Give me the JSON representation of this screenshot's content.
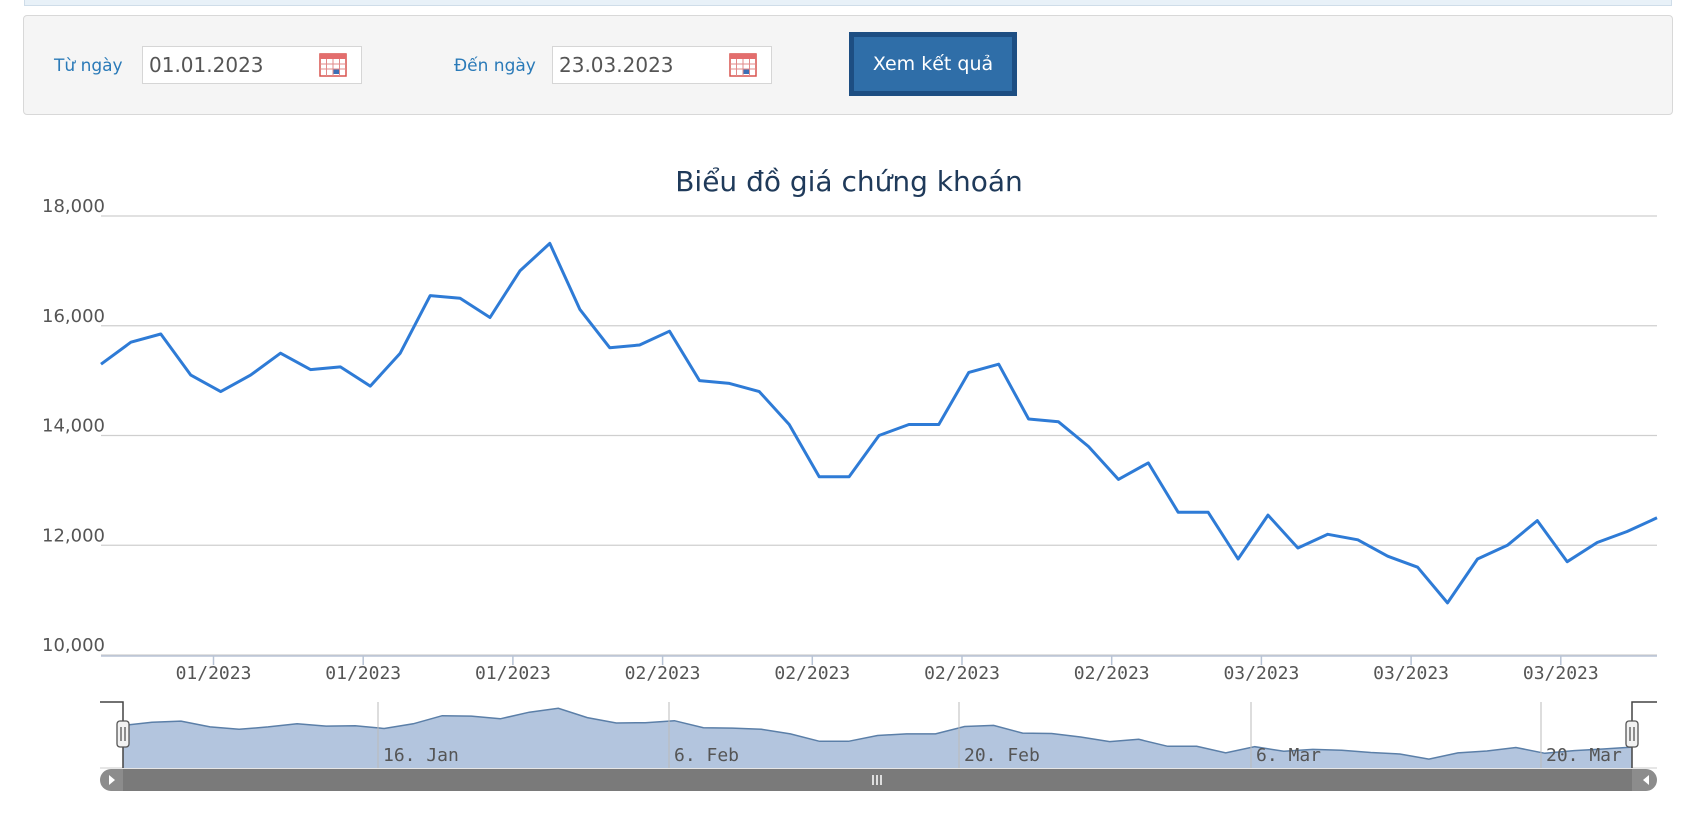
{
  "filter": {
    "from_label": "Từ ngày",
    "from_value": "01.01.2023",
    "to_label": "Đến ngày",
    "to_value": "23.03.2023",
    "submit_label": "Xem kết quả"
  },
  "colors": {
    "accent": "#2f6ea8",
    "line": "#2e7bd6",
    "navigator_fill": "#b3c5de",
    "label": "#2a7ab8"
  },
  "icons": {
    "calendar": "calendar-icon",
    "scroll_left": "arrow-left-icon",
    "scroll_right": "arrow-right-icon",
    "scrollbar_grip": "grip-icon"
  },
  "chart_data": {
    "type": "line",
    "title": "Biểu đồ giá chứng khoán",
    "xlabel": "",
    "ylabel": "",
    "ylim": [
      10000,
      18000
    ],
    "yticks": [
      "10,000",
      "12,000",
      "14,000",
      "16,000",
      "18,000"
    ],
    "grid": true,
    "xtick_labels": [
      "01/2023",
      "01/2023",
      "01/2023",
      "02/2023",
      "02/2023",
      "02/2023",
      "02/2023",
      "03/2023",
      "03/2023",
      "03/2023"
    ],
    "navigator_labels": [
      "16. Jan",
      "6. Feb",
      "20. Feb",
      "6. Mar",
      "20. Mar"
    ],
    "series": [
      {
        "values": [
          15300,
          15700,
          15850,
          15100,
          14800,
          15100,
          15500,
          15200,
          15250,
          14900,
          15500,
          16550,
          16500,
          16150,
          17000,
          17500,
          16300,
          15600,
          15650,
          15900,
          15000,
          14950,
          14800,
          14200,
          13250,
          13250,
          14000,
          14200,
          14200,
          15150,
          15300,
          14300,
          14250,
          13800,
          13200,
          13500,
          12600,
          12600,
          11750,
          12550,
          11950,
          12200,
          12100,
          11800,
          11600,
          10950,
          11750,
          12000,
          12450,
          11700,
          12050,
          12250,
          12500
        ]
      }
    ]
  }
}
